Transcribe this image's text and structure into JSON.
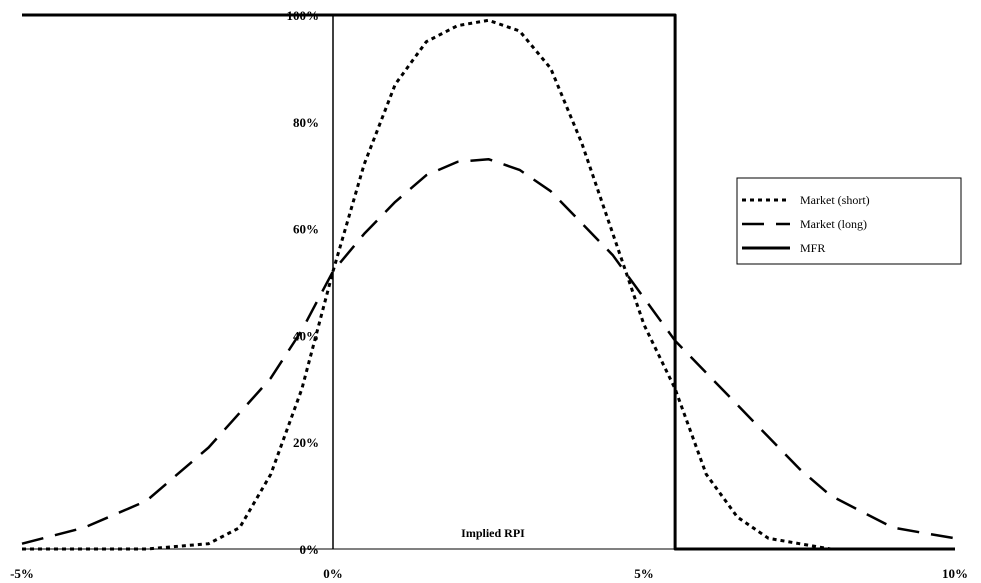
{
  "chart_data": {
    "type": "line",
    "xlabel": "Implied RPI",
    "ylabel": "",
    "xlim": [
      -5,
      10
    ],
    "ylim": [
      0,
      100
    ],
    "x_ticks": [
      "-5%",
      "0%",
      "5%",
      "10%"
    ],
    "y_ticks": [
      "0%",
      "20%",
      "40%",
      "60%",
      "80%",
      "100%"
    ],
    "grid": false,
    "legend_position": "right",
    "series": [
      {
        "name": "Market (short)",
        "style": "dotted",
        "x": [
          -5,
          -4,
          -3,
          -2,
          -1.5,
          -1,
          -0.5,
          0,
          0.5,
          1,
          1.5,
          2,
          2.5,
          3,
          3.5,
          4,
          4.5,
          5,
          5.5,
          6,
          6.5,
          7,
          7.5,
          8,
          9,
          10
        ],
        "values": [
          0,
          0,
          0,
          1,
          4,
          14,
          30,
          52,
          72,
          87,
          95,
          98,
          99,
          97,
          90,
          76,
          59,
          42,
          30,
          14,
          6,
          2,
          1,
          0,
          0,
          0
        ]
      },
      {
        "name": "Market (long)",
        "style": "dashed",
        "x": [
          -5,
          -4,
          -3,
          -2,
          -1,
          -0.5,
          0,
          0.5,
          1,
          1.5,
          2,
          2.5,
          3,
          3.5,
          4,
          4.5,
          5,
          5.5,
          6,
          6.5,
          7,
          7.5,
          8,
          8.5,
          9,
          9.5,
          10
        ],
        "values": [
          1,
          4,
          9,
          19,
          32,
          41,
          52,
          59,
          65,
          70,
          72.5,
          73,
          71,
          67,
          61,
          55,
          47,
          39,
          33,
          27,
          21,
          15,
          10,
          7,
          4,
          3,
          2
        ]
      },
      {
        "name": "MFR",
        "style": "solid",
        "x": [
          -5,
          0,
          5.5,
          5.5,
          10
        ],
        "values": [
          100,
          100,
          100,
          0,
          0
        ]
      }
    ]
  }
}
